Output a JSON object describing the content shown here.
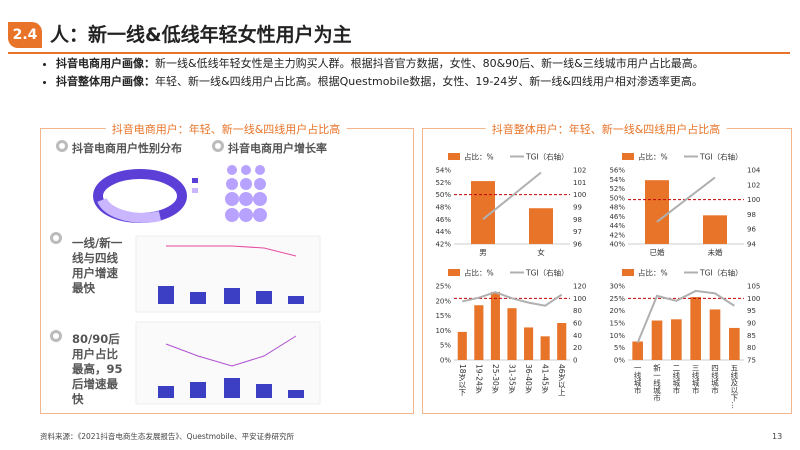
{
  "header": {
    "badge": "2.4",
    "title": "人：新一线&低线年轻女性用户为主"
  },
  "bullets": [
    {
      "lead": "抖音电商用户画像：",
      "text": "新一线&低线年轻女性是主力购买人群。根据抖音官方数据，女性、80&90后、新一线&三线城市用户占比最高。"
    },
    {
      "lead": "抖音整体用户画像：",
      "text": "年轻、新一线&四线用户占比高。根据Questmobile数据，女性、19-24岁、新一线&四线用户相对渗透率更高。"
    }
  ],
  "left_panel": {
    "title": "抖音电商用户：年轻、新一线&四线用户占比高",
    "sections": [
      "抖音电商用户性别分布",
      "抖音电商用户增长率",
      "一线/新一线与四线用户增速最快",
      "80/90后用户占比最高，95后增速最快"
    ]
  },
  "right_panel": {
    "title": "抖音整体用户：年轻、新一线&四线用户占比高"
  },
  "chart_data": [
    {
      "type": "combo",
      "categories": [
        "男",
        "女"
      ],
      "series": [
        {
          "name": "占比：%",
          "type": "bar",
          "color": "#e8742a",
          "values": [
            52.2,
            47.8
          ]
        },
        {
          "name": "TGI（右轴）",
          "type": "line",
          "axis": "y2",
          "color": "#b0b0b0",
          "values": [
            98,
            101.8
          ]
        }
      ],
      "ylim": [
        42,
        54
      ],
      "yticks": [
        {
          "value": 42,
          "label": "42%"
        },
        {
          "value": 44,
          "label": "44%"
        },
        {
          "value": 46,
          "label": "46%"
        },
        {
          "value": 48,
          "label": "48%"
        },
        {
          "value": 50,
          "label": "50%"
        },
        {
          "value": 52,
          "label": "52%"
        },
        {
          "value": 54,
          "label": "54%"
        }
      ],
      "y2lim": [
        96,
        102
      ],
      "y2ticks": [
        96,
        97,
        98,
        99,
        100,
        101,
        102
      ],
      "ref_line": {
        "value": 100,
        "axis": "y2",
        "color": "#c00000"
      }
    },
    {
      "type": "combo",
      "categories": [
        "已婚",
        "未婚"
      ],
      "series": [
        {
          "name": "占比：%",
          "type": "bar",
          "color": "#e8742a",
          "values": [
            53.8,
            46.2
          ]
        },
        {
          "name": "TGI（右轴）",
          "type": "line",
          "axis": "y2",
          "color": "#b0b0b0",
          "values": [
            97,
            103
          ]
        }
      ],
      "ylim": [
        40,
        56
      ],
      "yticks": [
        {
          "value": 40,
          "label": "40%"
        },
        {
          "value": 42,
          "label": "42%"
        },
        {
          "value": 44,
          "label": "44%"
        },
        {
          "value": 46,
          "label": "46%"
        },
        {
          "value": 48,
          "label": "48%"
        },
        {
          "value": 50,
          "label": "50%"
        },
        {
          "value": 52,
          "label": "52%"
        },
        {
          "value": 54,
          "label": "54%"
        },
        {
          "value": 56,
          "label": "56%"
        }
      ],
      "y2lim": [
        94,
        104
      ],
      "y2ticks": [
        94,
        96,
        98,
        100,
        102,
        104
      ],
      "ref_line": {
        "value": 100,
        "axis": "y2",
        "color": "#c00000"
      }
    },
    {
      "type": "combo",
      "categories": [
        "18岁以下",
        "19-24岁",
        "25-30岁",
        "31-35岁",
        "36-40岁",
        "41-45岁",
        "46岁以上"
      ],
      "series": [
        {
          "name": "占比：%",
          "type": "bar",
          "color": "#e8742a",
          "values": [
            9.5,
            18.5,
            23,
            17.5,
            11,
            8,
            12.5
          ]
        },
        {
          "name": "TGI（右轴）",
          "type": "line",
          "axis": "y2",
          "color": "#b0b0b0",
          "values": [
            95,
            101,
            110,
            100,
            93,
            88,
            106
          ]
        }
      ],
      "ylim": [
        0,
        25
      ],
      "yticks": [
        {
          "value": 0,
          "label": "0%"
        },
        {
          "value": 5,
          "label": "5%"
        },
        {
          "value": 10,
          "label": "10%"
        },
        {
          "value": 15,
          "label": "15%"
        },
        {
          "value": 20,
          "label": "20%"
        },
        {
          "value": 25,
          "label": "25%"
        }
      ],
      "y2lim": [
        0,
        120
      ],
      "y2ticks": [
        0,
        20,
        40,
        60,
        80,
        100,
        120
      ],
      "ref_line": {
        "value": 100,
        "axis": "y2",
        "color": "#c00000"
      }
    },
    {
      "type": "combo",
      "categories": [
        "一线城市",
        "新一线城市",
        "二线城市",
        "三线城市",
        "四线城市",
        "五线及以下…"
      ],
      "series": [
        {
          "name": "占比：%",
          "type": "bar",
          "color": "#e8742a",
          "values": [
            7.5,
            16,
            16.5,
            25.5,
            20.5,
            13
          ]
        },
        {
          "name": "TGI（右轴）",
          "type": "line",
          "axis": "y2",
          "color": "#b0b0b0",
          "values": [
            82,
            101,
            99,
            103,
            102,
            97
          ]
        }
      ],
      "ylim": [
        0,
        30
      ],
      "yticks": [
        {
          "value": 0,
          "label": "0%"
        },
        {
          "value": 5,
          "label": "5%"
        },
        {
          "value": 10,
          "label": "10%"
        },
        {
          "value": 15,
          "label": "15%"
        },
        {
          "value": 20,
          "label": "20%"
        },
        {
          "value": 25,
          "label": "25%"
        },
        {
          "value": 30,
          "label": "30%"
        }
      ],
      "y2lim": [
        75,
        105
      ],
      "y2ticks": [
        75,
        80,
        85,
        90,
        95,
        100,
        105
      ],
      "ref_line": {
        "value": 100,
        "axis": "y2",
        "color": "#c00000"
      }
    }
  ],
  "footer": {
    "source": "资料来源：《2021抖音电商生态发展报告》、Questmobile、平安证券研究所",
    "page": "13"
  }
}
